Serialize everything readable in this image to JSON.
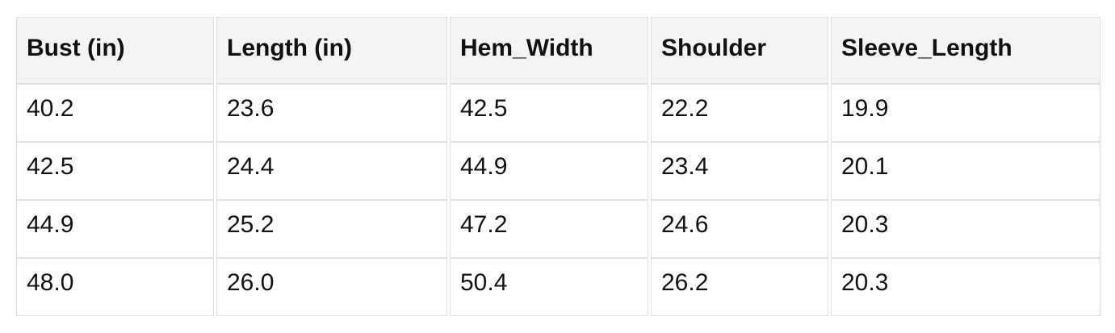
{
  "table": {
    "columns": [
      "Bust (in)",
      "Length (in)",
      "Hem_Width",
      "Shoulder",
      "Sleeve_Length"
    ],
    "rows": [
      [
        "40.2",
        "23.6",
        "42.5",
        "22.2",
        "19.9"
      ],
      [
        "42.5",
        "24.4",
        "44.9",
        "23.4",
        "20.1"
      ],
      [
        "44.9",
        "25.2",
        "47.2",
        "24.6",
        "20.3"
      ],
      [
        "48.0",
        "26.0",
        "50.4",
        "26.2",
        "20.3"
      ]
    ]
  },
  "chart_data": {
    "type": "table",
    "columns": [
      "Bust (in)",
      "Length (in)",
      "Hem_Width",
      "Shoulder",
      "Sleeve_Length"
    ],
    "rows": [
      [
        40.2,
        23.6,
        42.5,
        22.2,
        19.9
      ],
      [
        42.5,
        24.4,
        44.9,
        23.4,
        20.1
      ],
      [
        44.9,
        25.2,
        47.2,
        24.6,
        20.3
      ],
      [
        48.0,
        26.0,
        50.4,
        26.2,
        20.3
      ]
    ]
  },
  "colors": {
    "page_bg": "#ffffff",
    "header_bg": "#f4f4f5",
    "cell_bg": "#ffffff",
    "border": "#e0e0e0",
    "text": "#111111"
  }
}
